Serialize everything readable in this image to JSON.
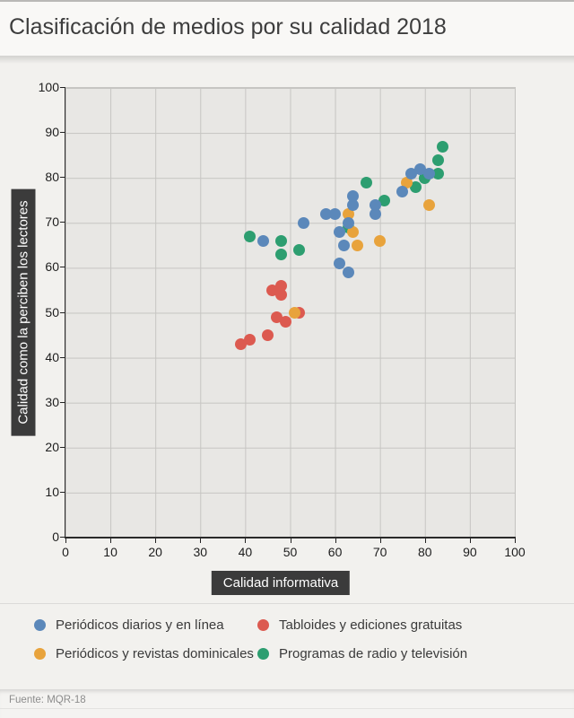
{
  "header": {
    "title": "Clasificación de medios por su calidad 2018"
  },
  "chart_data": {
    "type": "scatter",
    "title": "Clasificación de medios por su calidad 2018",
    "xlabel": "Calidad informativa",
    "ylabel": "Calidad como la perciben los lectores",
    "xlim": [
      0,
      100
    ],
    "ylim": [
      0,
      100
    ],
    "x_ticks": [
      0,
      10,
      20,
      30,
      40,
      50,
      60,
      70,
      80,
      90,
      100
    ],
    "y_ticks": [
      0,
      10,
      20,
      30,
      40,
      50,
      60,
      70,
      80,
      90,
      100
    ],
    "grid": true,
    "legend_position": "bottom",
    "series": [
      {
        "name": "Periódicos diarios y en línea",
        "color": "#5b88ba",
        "points": [
          [
            44,
            66
          ],
          [
            53,
            70
          ],
          [
            58,
            72
          ],
          [
            60,
            72
          ],
          [
            61,
            68
          ],
          [
            61,
            61
          ],
          [
            62,
            65
          ],
          [
            63,
            59
          ],
          [
            63,
            70
          ],
          [
            64,
            74
          ],
          [
            64,
            76
          ],
          [
            69,
            72
          ],
          [
            69,
            74
          ],
          [
            75,
            77
          ],
          [
            77,
            81
          ],
          [
            79,
            82
          ],
          [
            81,
            81
          ]
        ]
      },
      {
        "name": "Tabloides y ediciones gratuitas",
        "color": "#dc5a50",
        "points": [
          [
            39,
            43
          ],
          [
            41,
            44
          ],
          [
            45,
            45
          ],
          [
            46,
            55
          ],
          [
            47,
            49
          ],
          [
            48,
            54
          ],
          [
            48,
            56
          ],
          [
            49,
            48
          ],
          [
            52,
            50
          ]
        ]
      },
      {
        "name": "Periódicos y revistas dominicales",
        "color": "#e8a33c",
        "points": [
          [
            51,
            50
          ],
          [
            63,
            72
          ],
          [
            64,
            68
          ],
          [
            65,
            65
          ],
          [
            70,
            66
          ],
          [
            76,
            79
          ],
          [
            81,
            74
          ]
        ]
      },
      {
        "name": "Programas de radio y televisión",
        "color": "#2d9e70",
        "points": [
          [
            41,
            67
          ],
          [
            48,
            66
          ],
          [
            48,
            63
          ],
          [
            52,
            64
          ],
          [
            63,
            69
          ],
          [
            67,
            79
          ],
          [
            71,
            75
          ],
          [
            78,
            78
          ],
          [
            80,
            80
          ],
          [
            83,
            81
          ],
          [
            83,
            84
          ],
          [
            84,
            87
          ]
        ]
      }
    ],
    "draw_order": [
      1,
      3,
      2,
      0
    ]
  },
  "footer": {
    "source": "Fuente: MQR-18"
  }
}
